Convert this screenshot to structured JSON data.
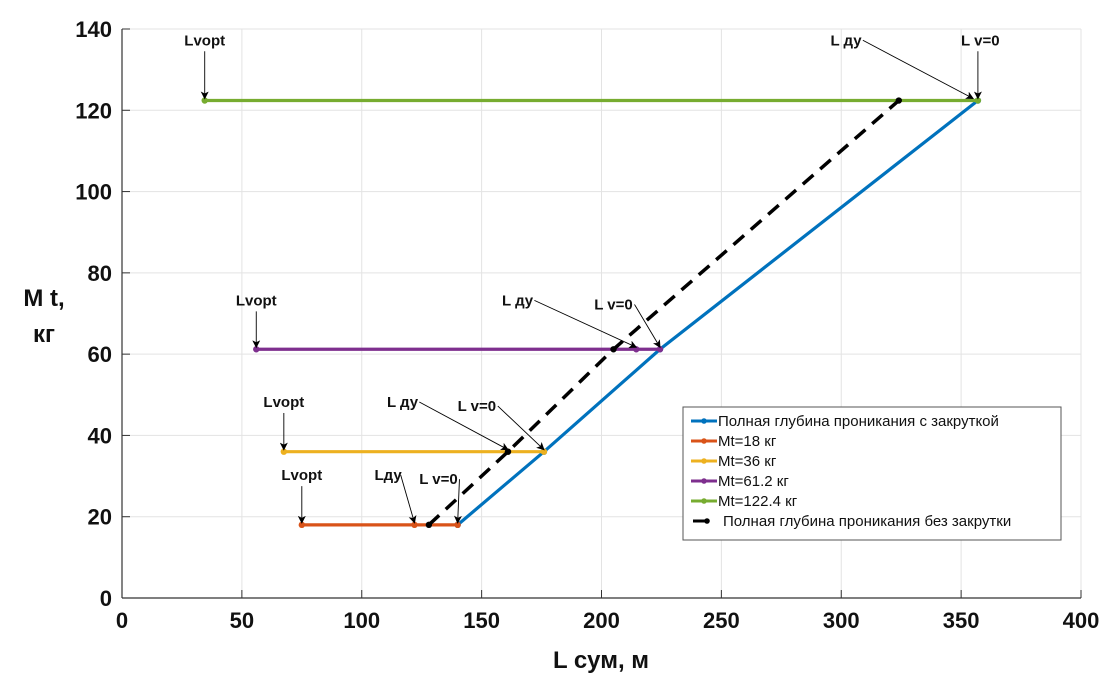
{
  "chart_data": {
    "type": "line",
    "title": "",
    "xlabel": "L сум, м",
    "ylabel": [
      "M t,",
      "кг"
    ],
    "xlim": [
      0,
      400
    ],
    "ylim": [
      0,
      140
    ],
    "xticks": [
      0,
      50,
      100,
      150,
      200,
      250,
      300,
      350,
      400
    ],
    "yticks": [
      0,
      20,
      40,
      60,
      80,
      100,
      120,
      140
    ],
    "grid": true,
    "legend_position": "lower-right",
    "series": [
      {
        "name": "Полная глубина проникания с закруткой",
        "color": "#0072BD",
        "style": "solid",
        "marker": "dot",
        "x": [
          140,
          176,
          224.4,
          357
        ],
        "y": [
          18,
          36,
          61.2,
          122.4
        ]
      },
      {
        "name": "Mt=18 кг",
        "color": "#D95319",
        "style": "solid",
        "marker": "dot",
        "x": [
          75,
          122,
          140
        ],
        "y": [
          18,
          18,
          18
        ]
      },
      {
        "name": "Mt=36 кг",
        "color": "#EDB120",
        "style": "solid",
        "marker": "dot",
        "x": [
          67.5,
          161,
          176
        ],
        "y": [
          36,
          36,
          36
        ]
      },
      {
        "name": "Mt=61.2 кг",
        "color": "#7E2F8E",
        "style": "solid",
        "marker": "dot",
        "x": [
          56,
          214.5,
          224.4
        ],
        "y": [
          61.2,
          61.2,
          61.2
        ]
      },
      {
        "name": "Mt=122.4 кг",
        "color": "#77AC30",
        "style": "solid",
        "marker": "dot",
        "x": [
          34.5,
          357
        ],
        "y": [
          122.4,
          122.4
        ]
      },
      {
        "name": "Полная глубина проникания без закрутки",
        "color": "#000000",
        "style": "dashed",
        "marker": "dot",
        "x": [
          128,
          161,
          205,
          324
        ],
        "y": [
          18,
          36,
          61.2,
          122.4
        ]
      }
    ],
    "annotations": [
      {
        "text": "Lvopt",
        "text_at": [
          34.5,
          136
        ],
        "arrow_to": [
          34.5,
          122.4
        ]
      },
      {
        "text": "L ду",
        "text_at": [
          302,
          136
        ],
        "arrow_to": [
          355,
          122.4
        ]
      },
      {
        "text": "L v=0",
        "text_at": [
          358,
          136
        ],
        "arrow_to": [
          357,
          122.4
        ]
      },
      {
        "text": "Lvopt",
        "text_at": [
          56,
          72
        ],
        "arrow_to": [
          56,
          61.2
        ]
      },
      {
        "text": "L ду",
        "text_at": [
          165,
          72
        ],
        "arrow_to": [
          214.5,
          61.2
        ]
      },
      {
        "text": "L v=0",
        "text_at": [
          205,
          71
        ],
        "arrow_to": [
          224.4,
          61.2
        ]
      },
      {
        "text": "Lvopt",
        "text_at": [
          67.5,
          47
        ],
        "arrow_to": [
          67.5,
          36
        ]
      },
      {
        "text": "L ду",
        "text_at": [
          117,
          47
        ],
        "arrow_to": [
          161,
          36
        ]
      },
      {
        "text": "L v=0",
        "text_at": [
          148,
          46
        ],
        "arrow_to": [
          176,
          36
        ]
      },
      {
        "text": "Lvopt",
        "text_at": [
          75,
          29
        ],
        "arrow_to": [
          75,
          18
        ]
      },
      {
        "text": "Lду",
        "text_at": [
          111,
          29
        ],
        "arrow_to": [
          122,
          18
        ]
      },
      {
        "text": "L v=0",
        "text_at": [
          132,
          28
        ],
        "arrow_to": [
          140,
          18
        ]
      }
    ]
  }
}
